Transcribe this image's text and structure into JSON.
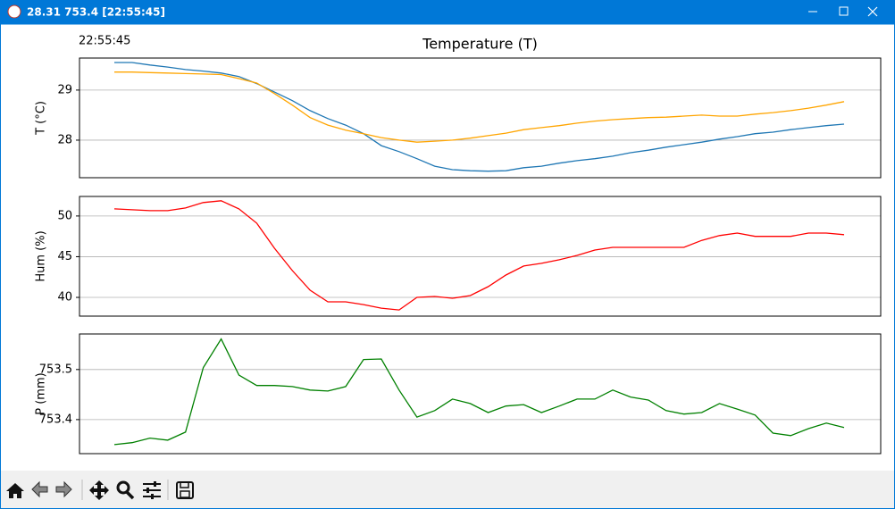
{
  "window": {
    "title": "28.31 753.4 [22:55:45]"
  },
  "timestamp": "22:55:45",
  "chart_data": [
    {
      "type": "line",
      "title": "Temperature (T)",
      "ylabel": "T (°C)",
      "ylim": [
        27.25,
        29.64
      ],
      "yticks": [
        28,
        29
      ],
      "grid": true,
      "series": [
        {
          "color": "#1f77b4",
          "values": [
            29.55,
            29.55,
            29.5,
            29.46,
            29.41,
            29.38,
            29.34,
            29.27,
            29.13,
            28.96,
            28.79,
            28.59,
            28.43,
            28.3,
            28.13,
            27.89,
            27.77,
            27.63,
            27.48,
            27.41,
            27.39,
            27.38,
            27.39,
            27.45,
            27.48,
            27.54,
            27.59,
            27.63,
            27.68,
            27.75,
            27.8,
            27.86,
            27.91,
            27.96,
            28.02,
            28.07,
            28.13,
            28.16,
            28.21,
            28.25,
            28.29,
            28.32
          ]
        },
        {
          "color": "#ffa500",
          "values": [
            29.36,
            29.36,
            29.35,
            29.34,
            29.33,
            29.32,
            29.31,
            29.23,
            29.14,
            28.93,
            28.7,
            28.45,
            28.3,
            28.2,
            28.13,
            28.05,
            28.0,
            27.96,
            27.98,
            28.0,
            28.04,
            28.09,
            28.14,
            28.21,
            28.25,
            28.29,
            28.34,
            28.38,
            28.41,
            28.43,
            28.45,
            28.46,
            28.48,
            28.5,
            28.48,
            28.48,
            28.52,
            28.55,
            28.59,
            28.64,
            28.7,
            28.77
          ]
        }
      ]
    },
    {
      "type": "line",
      "ylabel": "Hum (%)",
      "ylim": [
        37.7,
        52.4
      ],
      "yticks": [
        40,
        45,
        50
      ],
      "grid": true,
      "series": [
        {
          "color": "#ff0000",
          "values": [
            50.88,
            50.77,
            50.66,
            50.66,
            50.99,
            51.65,
            51.87,
            50.88,
            49.12,
            46.04,
            43.3,
            40.88,
            39.45,
            39.45,
            39.12,
            38.68,
            38.46,
            40.0,
            40.11,
            39.89,
            40.22,
            41.32,
            42.75,
            43.85,
            44.18,
            44.62,
            45.16,
            45.82,
            46.15,
            46.15,
            46.15,
            46.15,
            46.15,
            47.0,
            47.6,
            47.9,
            47.5,
            47.5,
            47.5,
            47.9,
            47.9,
            47.7
          ]
        }
      ]
    },
    {
      "type": "line",
      "ylabel": "P (mm)",
      "ylim": [
        753.332,
        753.571
      ],
      "yticks": [
        753.4,
        753.5
      ],
      "grid": true,
      "series": [
        {
          "color": "#008000",
          "values": [
            753.35,
            753.354,
            753.363,
            753.359,
            753.375,
            753.504,
            753.561,
            753.489,
            753.468,
            753.468,
            753.466,
            753.459,
            753.457,
            753.466,
            753.52,
            753.521,
            753.459,
            753.405,
            753.418,
            753.441,
            753.432,
            753.414,
            753.427,
            753.43,
            753.414,
            753.427,
            753.441,
            753.441,
            753.459,
            753.445,
            753.439,
            753.418,
            753.411,
            753.414,
            753.432,
            753.421,
            753.409,
            753.373,
            753.368,
            753.382,
            753.393,
            753.384
          ]
        }
      ]
    }
  ]
}
